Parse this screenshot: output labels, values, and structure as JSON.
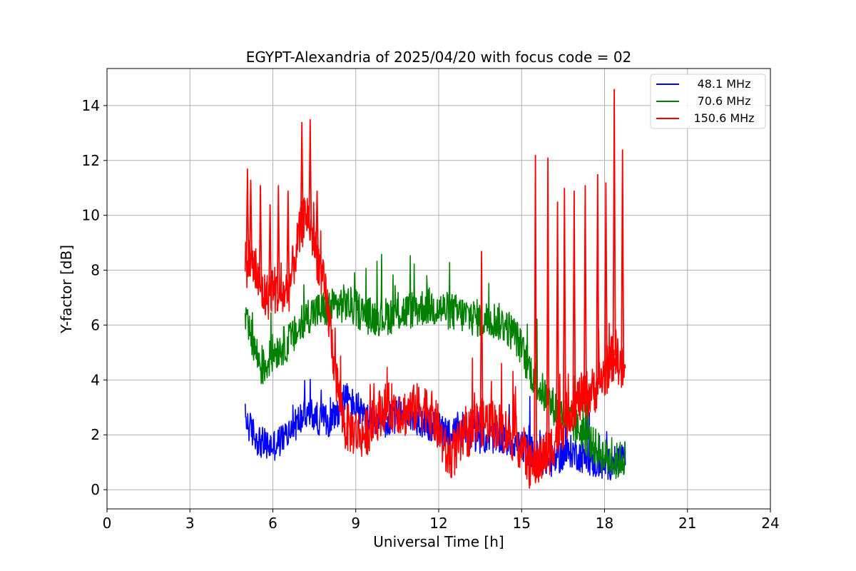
{
  "chart_data": {
    "type": "line",
    "title": "EGYPT-Alexandria of 2025/04/20 with focus code = 02",
    "xlabel": "Universal Time [h]",
    "ylabel": "Y-factor [dB]",
    "xlim": [
      0,
      24
    ],
    "ylim": [
      -0.7,
      15.35
    ],
    "xticks": [
      0,
      3,
      6,
      9,
      12,
      15,
      18,
      21,
      24
    ],
    "yticks": [
      0,
      2,
      4,
      6,
      8,
      10,
      12,
      14
    ],
    "grid": true,
    "legend_position": "top-right",
    "series": [
      {
        "name": "48.1 MHz",
        "color": "#0000ff",
        "x": [
          5.0,
          5.2,
          5.4,
          5.6,
          5.8,
          6.0,
          6.3,
          6.6,
          7.0,
          7.3,
          7.6,
          8.0,
          8.3,
          8.6,
          9.0,
          9.3,
          9.6,
          10.0,
          10.4,
          10.8,
          11.2,
          11.6,
          12.0,
          12.4,
          12.8,
          13.2,
          13.6,
          14.0,
          14.4,
          14.8,
          15.2,
          15.6,
          16.0,
          16.4,
          16.8,
          17.2,
          17.6,
          18.0,
          18.4,
          18.75
        ],
        "y": [
          2.6,
          2.2,
          1.9,
          1.7,
          1.6,
          1.6,
          1.8,
          2.1,
          2.6,
          2.8,
          2.6,
          2.5,
          2.8,
          3.4,
          3.0,
          2.6,
          2.4,
          2.4,
          2.6,
          2.8,
          2.6,
          2.4,
          2.2,
          2.1,
          2.0,
          2.0,
          1.9,
          1.9,
          1.8,
          1.7,
          1.5,
          1.2,
          1.0,
          1.2,
          1.4,
          1.2,
          1.0,
          0.9,
          1.0,
          1.3
        ],
        "noise": 0.6
      },
      {
        "name": "70.6 MHz",
        "color": "#008000",
        "x": [
          5.0,
          5.2,
          5.4,
          5.6,
          5.8,
          6.0,
          6.3,
          6.6,
          7.0,
          7.3,
          7.6,
          8.0,
          8.3,
          8.6,
          9.0,
          9.3,
          9.6,
          10.0,
          10.4,
          10.8,
          11.2,
          11.6,
          12.0,
          12.4,
          12.8,
          13.2,
          13.6,
          14.0,
          14.4,
          14.8,
          15.2,
          15.6,
          16.0,
          16.4,
          16.8,
          17.2,
          17.6,
          18.0,
          18.4,
          18.75
        ],
        "y": [
          6.1,
          5.6,
          5.0,
          4.4,
          4.6,
          5.0,
          5.2,
          5.4,
          5.9,
          6.4,
          6.5,
          6.6,
          6.7,
          6.8,
          6.6,
          6.4,
          6.3,
          6.3,
          6.4,
          6.5,
          6.6,
          6.7,
          6.6,
          6.5,
          6.4,
          6.3,
          6.2,
          6.2,
          6.0,
          5.6,
          4.6,
          3.8,
          3.2,
          2.8,
          2.4,
          2.1,
          1.6,
          1.2,
          1.0,
          1.2
        ],
        "noise": 0.7
      },
      {
        "name": "150.6 MHz",
        "color": "#ff0000",
        "x": [
          5.0,
          5.2,
          5.4,
          5.6,
          5.8,
          6.0,
          6.3,
          6.6,
          6.9,
          7.2,
          7.5,
          7.8,
          8.0,
          8.3,
          8.6,
          9.0,
          9.3,
          9.6,
          10.0,
          10.4,
          10.8,
          11.2,
          11.6,
          12.0,
          12.3,
          12.6,
          13.0,
          13.4,
          13.8,
          14.2,
          14.6,
          15.0,
          15.3,
          15.6,
          16.0,
          16.4,
          16.8,
          17.2,
          17.6,
          18.0,
          18.4,
          18.75
        ],
        "y": [
          8.2,
          8.4,
          7.8,
          7.2,
          7.0,
          7.4,
          7.0,
          7.4,
          9.0,
          10.2,
          9.0,
          7.6,
          6.5,
          4.0,
          2.3,
          2.1,
          2.0,
          2.4,
          3.0,
          3.0,
          2.8,
          3.0,
          3.0,
          2.2,
          1.2,
          1.4,
          2.0,
          2.4,
          2.5,
          2.3,
          2.0,
          1.6,
          0.8,
          1.0,
          1.4,
          2.2,
          3.0,
          3.4,
          3.6,
          4.2,
          5.0,
          4.0
        ],
        "noise": 0.9,
        "spikes": [
          [
            5.08,
            11.7
          ],
          [
            5.2,
            11.3
          ],
          [
            5.55,
            11.1
          ],
          [
            5.9,
            10.4
          ],
          [
            6.2,
            11.1
          ],
          [
            6.55,
            10.9
          ],
          [
            7.05,
            13.4
          ],
          [
            7.35,
            13.5
          ],
          [
            7.6,
            10.9
          ],
          [
            13.55,
            8.7
          ],
          [
            15.5,
            12.2
          ],
          [
            15.95,
            12.1
          ],
          [
            16.3,
            10.5
          ],
          [
            16.55,
            11.0
          ],
          [
            16.9,
            10.9
          ],
          [
            17.3,
            11.1
          ],
          [
            17.75,
            11.5
          ],
          [
            18.05,
            11.2
          ],
          [
            18.35,
            14.6
          ],
          [
            18.65,
            12.4
          ]
        ]
      }
    ]
  }
}
